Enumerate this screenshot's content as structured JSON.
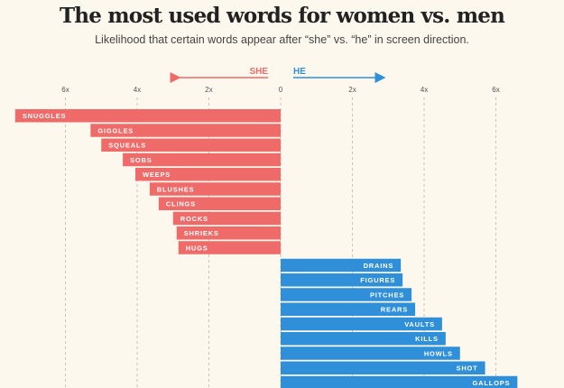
{
  "chart_data": {
    "type": "bar",
    "orientation": "horizontal-diverging",
    "title": "The most used words for women vs. men",
    "subtitle": "Likelihood that certain words appear after “she” vs. “he” in screen direction.",
    "direction_labels": {
      "left": "SHE",
      "right": "HE"
    },
    "ticks": [
      "6x",
      "4x",
      "2x",
      "0",
      "2x",
      "4x",
      "6x"
    ],
    "tick_values": [
      -6,
      -4,
      -2,
      0,
      2,
      4,
      6
    ],
    "xlim": [
      -7.4,
      7.4
    ],
    "grid": true,
    "colors": {
      "she": "#ef6b69",
      "he": "#2f8fd8"
    },
    "series": [
      {
        "name": "SHE",
        "side": "left",
        "categories": [
          "SNUGGLES",
          "GIGGLES",
          "SQUEALS",
          "SOBS",
          "WEEPS",
          "BLUSHES",
          "CLINGS",
          "ROCKS",
          "SHRIEKS",
          "HUGS"
        ],
        "values": [
          7.4,
          5.3,
          5.0,
          4.4,
          4.05,
          3.65,
          3.4,
          3.0,
          2.9,
          2.85
        ]
      },
      {
        "name": "HE",
        "side": "right",
        "categories": [
          "DRAINS",
          "FIGURES",
          "PITCHES",
          "REARS",
          "VAULTS",
          "KILLS",
          "HOWLS",
          "SHOT",
          "GALLOPS"
        ],
        "values": [
          3.35,
          3.4,
          3.65,
          3.75,
          4.5,
          4.6,
          5.0,
          5.7,
          6.6
        ]
      }
    ]
  }
}
